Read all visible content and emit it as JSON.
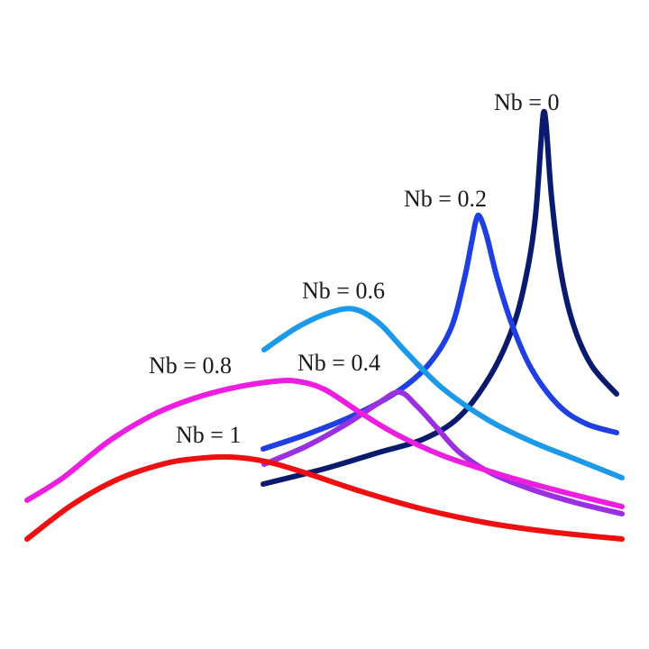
{
  "chart_data": {
    "type": "line",
    "title": "",
    "xlabel": "",
    "ylabel": "",
    "grid": false,
    "axes_visible": false,
    "xlim": [
      0,
      720
    ],
    "ylim": [
      0,
      720
    ],
    "series": [
      {
        "name": "Nb = 0",
        "color": "#0a1a6e",
        "points": [
          [
            292,
            183
          ],
          [
            360,
            200
          ],
          [
            420,
            218
          ],
          [
            470,
            233
          ],
          [
            510,
            258
          ],
          [
            545,
            305
          ],
          [
            570,
            360
          ],
          [
            585,
            420
          ],
          [
            594,
            480
          ],
          [
            600,
            560
          ],
          [
            603,
            595
          ],
          [
            606,
            580
          ],
          [
            612,
            500
          ],
          [
            622,
            420
          ],
          [
            636,
            360
          ],
          [
            656,
            315
          ],
          [
            684,
            283
          ]
        ]
      },
      {
        "name": "Nb = 0.2",
        "color": "#1f3fe0",
        "points": [
          [
            292,
            222
          ],
          [
            340,
            238
          ],
          [
            390,
            258
          ],
          [
            440,
            285
          ],
          [
            475,
            315
          ],
          [
            500,
            355
          ],
          [
            515,
            410
          ],
          [
            523,
            450
          ],
          [
            528,
            475
          ],
          [
            532,
            480
          ],
          [
            540,
            458
          ],
          [
            552,
            410
          ],
          [
            568,
            360
          ],
          [
            590,
            310
          ],
          [
            620,
            270
          ],
          [
            650,
            250
          ],
          [
            684,
            240
          ]
        ]
      },
      {
        "name": "Nb = 0.6",
        "color": "#1a9ae8",
        "points": [
          [
            293,
            332
          ],
          [
            330,
            357
          ],
          [
            365,
            373
          ],
          [
            393,
            377
          ],
          [
            420,
            362
          ],
          [
            450,
            330
          ],
          [
            490,
            290
          ],
          [
            540,
            255
          ],
          [
            590,
            230
          ],
          [
            640,
            210
          ],
          [
            690,
            190
          ]
        ]
      },
      {
        "name": "Nb = 0.4",
        "color": "#9b30e0",
        "points": [
          [
            293,
            205
          ],
          [
            340,
            225
          ],
          [
            385,
            250
          ],
          [
            420,
            273
          ],
          [
            443,
            285
          ],
          [
            462,
            270
          ],
          [
            485,
            245
          ],
          [
            510,
            218
          ],
          [
            545,
            195
          ],
          [
            590,
            177
          ],
          [
            640,
            162
          ],
          [
            690,
            150
          ]
        ]
      },
      {
        "name": "Nb = 0.8",
        "color": "#ee1ee0",
        "points": [
          [
            30,
            165
          ],
          [
            70,
            190
          ],
          [
            120,
            230
          ],
          [
            170,
            260
          ],
          [
            215,
            278
          ],
          [
            260,
            290
          ],
          [
            305,
            297
          ],
          [
            330,
            297
          ],
          [
            360,
            288
          ],
          [
            400,
            262
          ],
          [
            440,
            238
          ],
          [
            490,
            215
          ],
          [
            550,
            195
          ],
          [
            610,
            178
          ],
          [
            690,
            158
          ]
        ]
      },
      {
        "name": "Nb = 1",
        "color": "#ee1010",
        "points": [
          [
            30,
            122
          ],
          [
            80,
            160
          ],
          [
            130,
            188
          ],
          [
            180,
            205
          ],
          [
            215,
            211
          ],
          [
            255,
            213
          ],
          [
            295,
            208
          ],
          [
            340,
            195
          ],
          [
            400,
            175
          ],
          [
            470,
            155
          ],
          [
            540,
            140
          ],
          [
            610,
            130
          ],
          [
            690,
            122
          ]
        ]
      }
    ],
    "annotations": [
      {
        "text": "Nb = 0",
        "series": "Nb = 0",
        "x": 548,
        "y": 598
      },
      {
        "text": "Nb = 0.2",
        "series": "Nb = 0.2",
        "x": 448,
        "y": 491
      },
      {
        "text": "Nb = 0.6",
        "series": "Nb = 0.6",
        "x": 335,
        "y": 389
      },
      {
        "text": "Nb = 0.4",
        "series": "Nb = 0.4",
        "x": 330,
        "y": 309
      },
      {
        "text": "Nb = 0.8",
        "series": "Nb = 0.8",
        "x": 165,
        "y": 306
      },
      {
        "text": "Nb = 1",
        "series": "Nb = 1",
        "x": 195,
        "y": 229
      }
    ]
  }
}
